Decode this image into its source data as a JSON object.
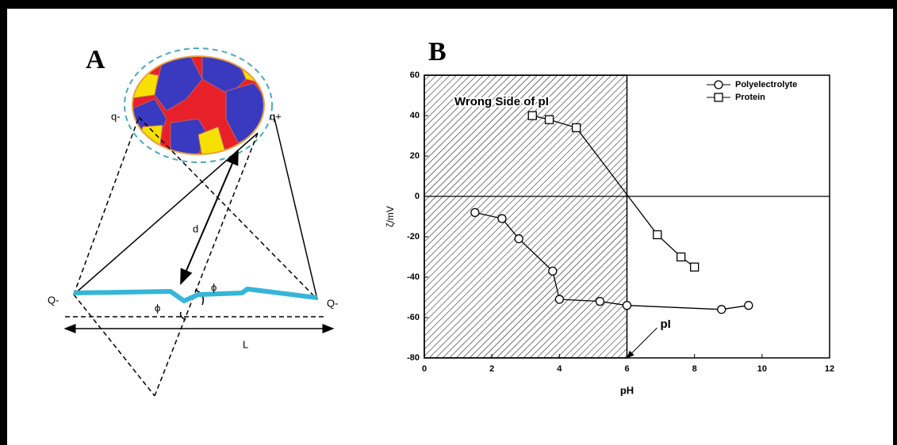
{
  "diagram": {
    "panel_label": "A",
    "labels": {
      "q_minus": "q-",
      "q_plus": "q+",
      "d": "d",
      "phi_top": "ϕ",
      "phi_bottom": "ϕ",
      "Q_left": "Q-",
      "Q_right": "Q-",
      "L": "L"
    }
  },
  "chart_data": {
    "type": "line",
    "panel_label": "B",
    "x_label": "pH",
    "y_label": "ζ/mV",
    "shaded_xrange": [
      0,
      6
    ],
    "shaded_label": "Wrong Side of pI",
    "annotations": [
      {
        "text": "pI",
        "x": 6,
        "y": -80
      }
    ],
    "xlim": [
      0,
      12
    ],
    "ylim": [
      -80,
      60
    ],
    "xticks": [
      0,
      2,
      4,
      6,
      8,
      10,
      12
    ],
    "yticks": [
      -80,
      -60,
      -40,
      -20,
      0,
      20,
      40,
      60
    ],
    "legend": "upper right",
    "series": [
      {
        "name": "Polyelectrolyte",
        "color": "#000000",
        "marker": "circle",
        "x": [
          1.5,
          2.3,
          2.8,
          3.8,
          4.0,
          5.2,
          6.0,
          8.8,
          9.6
        ],
        "values": [
          -8,
          -11,
          -21,
          -37,
          -51,
          -52,
          -54,
          -56,
          -54
        ]
      },
      {
        "name": "Protein",
        "color": "#000000",
        "marker": "square",
        "x": [
          3.2,
          3.7,
          4.5,
          6.9,
          7.6,
          8.0
        ],
        "values": [
          40,
          38,
          34,
          -19,
          -30,
          -35
        ]
      }
    ]
  }
}
